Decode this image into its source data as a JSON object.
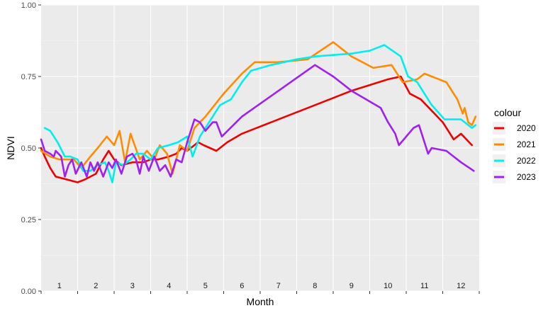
{
  "chart_data": {
    "type": "line",
    "xlabel": "Month",
    "ylabel": "NDVI",
    "xlim": [
      0.5,
      12.5
    ],
    "ylim": [
      0,
      1
    ],
    "y_ticks": [
      "0.00",
      "0.25",
      "0.50",
      "0.75",
      "1.00"
    ],
    "y_tick_values": [
      0,
      0.25,
      0.5,
      0.75,
      1.0
    ],
    "month_labels": [
      "1",
      "2",
      "3",
      "4",
      "5",
      "6",
      "7",
      "8",
      "9",
      "10",
      "11",
      "12"
    ],
    "grid": true,
    "legend_title": "colour",
    "legend_position": "right",
    "series": [
      {
        "name": "2020",
        "color": "#ee0000",
        "points": [
          [
            0.5,
            0.5
          ],
          [
            0.6,
            0.47
          ],
          [
            0.75,
            0.43
          ],
          [
            0.9,
            0.4
          ],
          [
            1.5,
            0.38
          ],
          [
            1.7,
            0.39
          ],
          [
            2.0,
            0.41
          ],
          [
            2.2,
            0.46
          ],
          [
            2.35,
            0.49
          ],
          [
            2.5,
            0.46
          ],
          [
            2.7,
            0.44
          ],
          [
            3.0,
            0.45
          ],
          [
            3.3,
            0.45
          ],
          [
            3.5,
            0.46
          ],
          [
            3.7,
            0.46
          ],
          [
            4.0,
            0.47
          ],
          [
            4.2,
            0.48
          ],
          [
            4.35,
            0.5
          ],
          [
            4.5,
            0.49
          ],
          [
            4.7,
            0.51
          ],
          [
            4.8,
            0.52
          ],
          [
            4.95,
            0.51
          ],
          [
            5.3,
            0.49
          ],
          [
            5.6,
            0.52
          ],
          [
            6.0,
            0.55
          ],
          [
            6.4,
            0.57
          ],
          [
            7.0,
            0.6
          ],
          [
            8.0,
            0.65
          ],
          [
            9.0,
            0.7
          ],
          [
            10.0,
            0.74
          ],
          [
            10.35,
            0.75
          ],
          [
            10.6,
            0.69
          ],
          [
            10.9,
            0.67
          ],
          [
            11.5,
            0.59
          ],
          [
            11.8,
            0.53
          ],
          [
            12.0,
            0.55
          ],
          [
            12.3,
            0.51
          ]
        ]
      },
      {
        "name": "2021",
        "color": "#ff8c00",
        "points": [
          [
            0.5,
            0.49
          ],
          [
            0.75,
            0.47
          ],
          [
            1.0,
            0.46
          ],
          [
            1.4,
            0.46
          ],
          [
            1.6,
            0.43
          ],
          [
            1.85,
            0.47
          ],
          [
            2.05,
            0.5
          ],
          [
            2.3,
            0.54
          ],
          [
            2.5,
            0.51
          ],
          [
            2.65,
            0.56
          ],
          [
            2.8,
            0.45
          ],
          [
            2.95,
            0.55
          ],
          [
            3.2,
            0.46
          ],
          [
            3.4,
            0.49
          ],
          [
            3.6,
            0.46
          ],
          [
            3.75,
            0.51
          ],
          [
            3.95,
            0.48
          ],
          [
            4.1,
            0.41
          ],
          [
            4.3,
            0.51
          ],
          [
            4.5,
            0.49
          ],
          [
            4.7,
            0.57
          ],
          [
            5.0,
            0.61
          ],
          [
            5.5,
            0.69
          ],
          [
            6.0,
            0.76
          ],
          [
            6.35,
            0.8
          ],
          [
            7.0,
            0.8
          ],
          [
            7.8,
            0.81
          ],
          [
            8.5,
            0.87
          ],
          [
            9.0,
            0.82
          ],
          [
            9.6,
            0.78
          ],
          [
            10.1,
            0.79
          ],
          [
            10.4,
            0.73
          ],
          [
            10.8,
            0.74
          ],
          [
            11.0,
            0.76
          ],
          [
            11.6,
            0.73
          ],
          [
            11.9,
            0.67
          ],
          [
            12.05,
            0.62
          ],
          [
            12.1,
            0.64
          ],
          [
            12.2,
            0.59
          ],
          [
            12.3,
            0.58
          ],
          [
            12.4,
            0.61
          ]
        ]
      },
      {
        "name": "2022",
        "color": "#00eeee",
        "points": [
          [
            0.6,
            0.57
          ],
          [
            0.75,
            0.56
          ],
          [
            0.95,
            0.52
          ],
          [
            1.15,
            0.47
          ],
          [
            1.3,
            0.47
          ],
          [
            1.5,
            0.46
          ],
          [
            1.65,
            0.42
          ],
          [
            1.85,
            0.42
          ],
          [
            2.05,
            0.44
          ],
          [
            2.25,
            0.45
          ],
          [
            2.35,
            0.42
          ],
          [
            2.45,
            0.38
          ],
          [
            2.55,
            0.45
          ],
          [
            2.75,
            0.44
          ],
          [
            2.95,
            0.46
          ],
          [
            3.1,
            0.48
          ],
          [
            3.3,
            0.48
          ],
          [
            3.5,
            0.46
          ],
          [
            3.7,
            0.5
          ],
          [
            4.0,
            0.51
          ],
          [
            4.25,
            0.52
          ],
          [
            4.5,
            0.54
          ],
          [
            4.65,
            0.47
          ],
          [
            4.85,
            0.54
          ],
          [
            5.0,
            0.57
          ],
          [
            5.4,
            0.65
          ],
          [
            5.7,
            0.67
          ],
          [
            6.0,
            0.73
          ],
          [
            6.25,
            0.77
          ],
          [
            6.8,
            0.79
          ],
          [
            7.5,
            0.81
          ],
          [
            8.0,
            0.82
          ],
          [
            9.0,
            0.83
          ],
          [
            9.5,
            0.84
          ],
          [
            9.9,
            0.86
          ],
          [
            10.35,
            0.82
          ],
          [
            10.55,
            0.75
          ],
          [
            10.8,
            0.73
          ],
          [
            11.2,
            0.65
          ],
          [
            11.55,
            0.6
          ],
          [
            12.0,
            0.6
          ],
          [
            12.3,
            0.57
          ],
          [
            12.4,
            0.58
          ]
        ]
      },
      {
        "name": "2023",
        "color": "#a020f0",
        "points": [
          [
            0.5,
            0.53
          ],
          [
            0.6,
            0.49
          ],
          [
            0.75,
            0.48
          ],
          [
            0.85,
            0.47
          ],
          [
            0.9,
            0.49
          ],
          [
            1.05,
            0.47
          ],
          [
            1.15,
            0.4
          ],
          [
            1.25,
            0.44
          ],
          [
            1.35,
            0.46
          ],
          [
            1.45,
            0.41
          ],
          [
            1.6,
            0.45
          ],
          [
            1.75,
            0.4
          ],
          [
            1.85,
            0.45
          ],
          [
            1.95,
            0.42
          ],
          [
            2.05,
            0.45
          ],
          [
            2.2,
            0.4
          ],
          [
            2.35,
            0.45
          ],
          [
            2.45,
            0.43
          ],
          [
            2.55,
            0.46
          ],
          [
            2.7,
            0.41
          ],
          [
            2.85,
            0.47
          ],
          [
            3.0,
            0.48
          ],
          [
            3.1,
            0.46
          ],
          [
            3.2,
            0.41
          ],
          [
            3.3,
            0.47
          ],
          [
            3.45,
            0.42
          ],
          [
            3.6,
            0.47
          ],
          [
            3.75,
            0.42
          ],
          [
            3.9,
            0.44
          ],
          [
            4.05,
            0.4
          ],
          [
            4.2,
            0.46
          ],
          [
            4.35,
            0.45
          ],
          [
            4.5,
            0.52
          ],
          [
            4.7,
            0.6
          ],
          [
            4.85,
            0.59
          ],
          [
            5.0,
            0.56
          ],
          [
            5.2,
            0.59
          ],
          [
            5.3,
            0.59
          ],
          [
            5.45,
            0.54
          ],
          [
            6.0,
            0.61
          ],
          [
            7.0,
            0.7
          ],
          [
            8.0,
            0.79
          ],
          [
            8.5,
            0.75
          ],
          [
            9.0,
            0.7
          ],
          [
            9.8,
            0.64
          ],
          [
            10.0,
            0.59
          ],
          [
            10.2,
            0.55
          ],
          [
            10.3,
            0.51
          ],
          [
            10.7,
            0.57
          ],
          [
            10.85,
            0.58
          ],
          [
            11.1,
            0.48
          ],
          [
            11.2,
            0.5
          ],
          [
            11.6,
            0.49
          ],
          [
            12.0,
            0.45
          ],
          [
            12.35,
            0.42
          ]
        ]
      }
    ]
  }
}
